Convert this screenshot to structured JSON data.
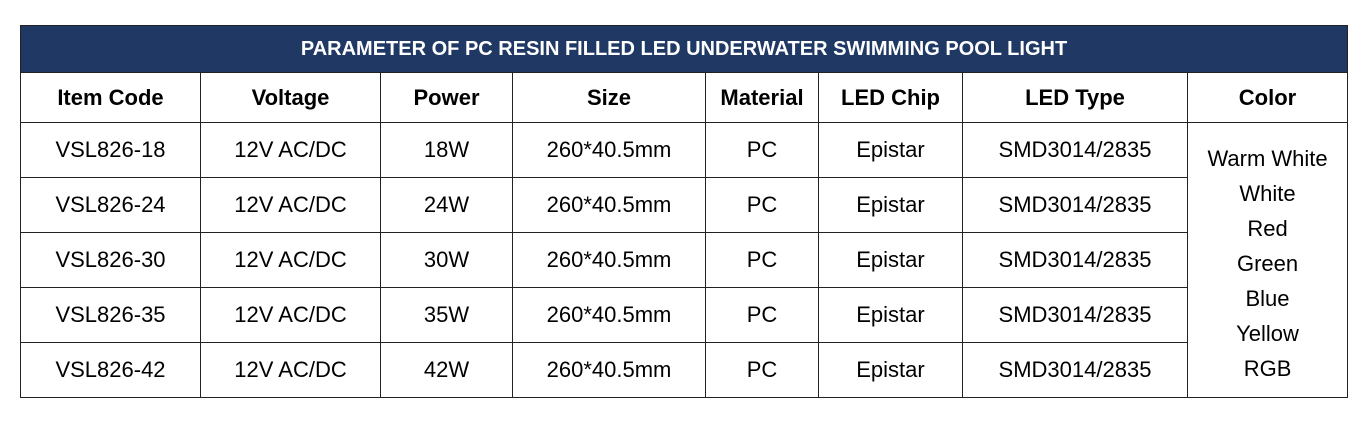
{
  "table": {
    "title": "PARAMETER OF PC RESIN FILLED LED UNDERWATER SWIMMING POOL LIGHT",
    "headers": [
      "Item Code",
      "Voltage",
      "Power",
      "Size",
      "Material",
      "LED Chip",
      "LED Type",
      "Color"
    ],
    "rows": [
      [
        "VSL826-18",
        "12V AC/DC",
        "18W",
        "260*40.5mm",
        "PC",
        "Epistar",
        "SMD3014/2835"
      ],
      [
        "VSL826-24",
        "12V AC/DC",
        "24W",
        "260*40.5mm",
        "PC",
        "Epistar",
        "SMD3014/2835"
      ],
      [
        "VSL826-30",
        "12V AC/DC",
        "30W",
        "260*40.5mm",
        "PC",
        "Epistar",
        "SMD3014/2835"
      ],
      [
        "VSL826-35",
        "12V AC/DC",
        "35W",
        "260*40.5mm",
        "PC",
        "Epistar",
        "SMD3014/2835"
      ],
      [
        "VSL826-42",
        "12V AC/DC",
        "42W",
        "260*40.5mm",
        "PC",
        "Epistar",
        "SMD3014/2835"
      ]
    ],
    "colors": [
      "Warm White",
      "White",
      "Red",
      "Green",
      "Blue",
      "Yellow",
      "RGB"
    ]
  }
}
